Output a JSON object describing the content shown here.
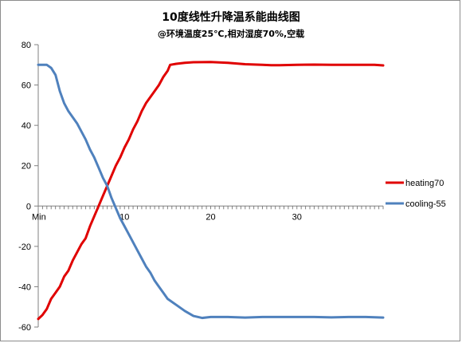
{
  "chart_data": {
    "type": "line",
    "title": "10度线性升降温系能曲线图",
    "subtitle": "@环境温度25℃,相对湿度70%,空载",
    "xlabel": "",
    "ylabel": "",
    "xlim": [
      0,
      40
    ],
    "ylim": [
      -60,
      80
    ],
    "yticks": [
      80,
      60,
      40,
      20,
      0,
      -20,
      -40,
      -60
    ],
    "xticks": [
      {
        "value": 0,
        "label": "Min"
      },
      {
        "value": 10,
        "label": "10"
      },
      {
        "value": 20,
        "label": "20"
      },
      {
        "value": 30,
        "label": "30"
      }
    ],
    "grid": false,
    "legend_position": "right",
    "series": [
      {
        "name": "heating70",
        "color": "#e00000",
        "points": [
          [
            0.0,
            -56
          ],
          [
            0.5,
            -54
          ],
          [
            1.0,
            -51
          ],
          [
            1.5,
            -46
          ],
          [
            2.0,
            -43
          ],
          [
            2.5,
            -40
          ],
          [
            3.0,
            -35
          ],
          [
            3.5,
            -32
          ],
          [
            4.0,
            -27
          ],
          [
            4.5,
            -23
          ],
          [
            5.0,
            -19
          ],
          [
            5.5,
            -16
          ],
          [
            6.0,
            -10
          ],
          [
            6.5,
            -5
          ],
          [
            7.0,
            0
          ],
          [
            7.5,
            5
          ],
          [
            8.0,
            10
          ],
          [
            8.5,
            15
          ],
          [
            9.0,
            20
          ],
          [
            9.5,
            24
          ],
          [
            10.0,
            29
          ],
          [
            10.5,
            33
          ],
          [
            11.0,
            38
          ],
          [
            11.5,
            42
          ],
          [
            12.0,
            47
          ],
          [
            12.5,
            51
          ],
          [
            13.0,
            54
          ],
          [
            13.5,
            57
          ],
          [
            14.0,
            60
          ],
          [
            14.5,
            64
          ],
          [
            15.0,
            67
          ],
          [
            15.3,
            70
          ],
          [
            16.0,
            70.5
          ],
          [
            17.0,
            71
          ],
          [
            18.0,
            71.3
          ],
          [
            20.0,
            71.4
          ],
          [
            22.0,
            71
          ],
          [
            24.0,
            70.3
          ],
          [
            26.0,
            70
          ],
          [
            27.0,
            69.8
          ],
          [
            28.0,
            69.8
          ],
          [
            30.0,
            70
          ],
          [
            32.0,
            70.1
          ],
          [
            34.0,
            70
          ],
          [
            36.0,
            70
          ],
          [
            38.0,
            70
          ],
          [
            39.0,
            70
          ],
          [
            40.0,
            69.7
          ]
        ]
      },
      {
        "name": "cooling-55",
        "color": "#4f81bd",
        "points": [
          [
            0.0,
            70
          ],
          [
            0.5,
            70
          ],
          [
            1.0,
            70
          ],
          [
            1.5,
            68.5
          ],
          [
            2.0,
            65
          ],
          [
            2.5,
            57
          ],
          [
            3.0,
            51
          ],
          [
            3.5,
            47
          ],
          [
            4.0,
            44
          ],
          [
            4.5,
            41
          ],
          [
            5.0,
            37
          ],
          [
            5.5,
            33
          ],
          [
            6.0,
            28
          ],
          [
            6.5,
            24
          ],
          [
            7.0,
            19
          ],
          [
            7.5,
            14
          ],
          [
            8.0,
            10
          ],
          [
            8.5,
            4
          ],
          [
            9.0,
            -1
          ],
          [
            9.5,
            -6
          ],
          [
            10.0,
            -10
          ],
          [
            10.5,
            -14
          ],
          [
            11.0,
            -18
          ],
          [
            11.5,
            -22
          ],
          [
            12.0,
            -26
          ],
          [
            12.5,
            -30
          ],
          [
            13.0,
            -33
          ],
          [
            13.5,
            -37
          ],
          [
            14.0,
            -40
          ],
          [
            14.5,
            -43
          ],
          [
            15.0,
            -46
          ],
          [
            16.0,
            -49
          ],
          [
            17.0,
            -52
          ],
          [
            18.0,
            -54.5
          ],
          [
            19.0,
            -55.5
          ],
          [
            20.0,
            -55
          ],
          [
            22.0,
            -55
          ],
          [
            24.0,
            -55.3
          ],
          [
            26.0,
            -55
          ],
          [
            28.0,
            -55
          ],
          [
            30.0,
            -55
          ],
          [
            32.0,
            -55
          ],
          [
            34.0,
            -55.2
          ],
          [
            36.0,
            -55
          ],
          [
            38.0,
            -55
          ],
          [
            40.0,
            -55.3
          ]
        ]
      }
    ]
  }
}
